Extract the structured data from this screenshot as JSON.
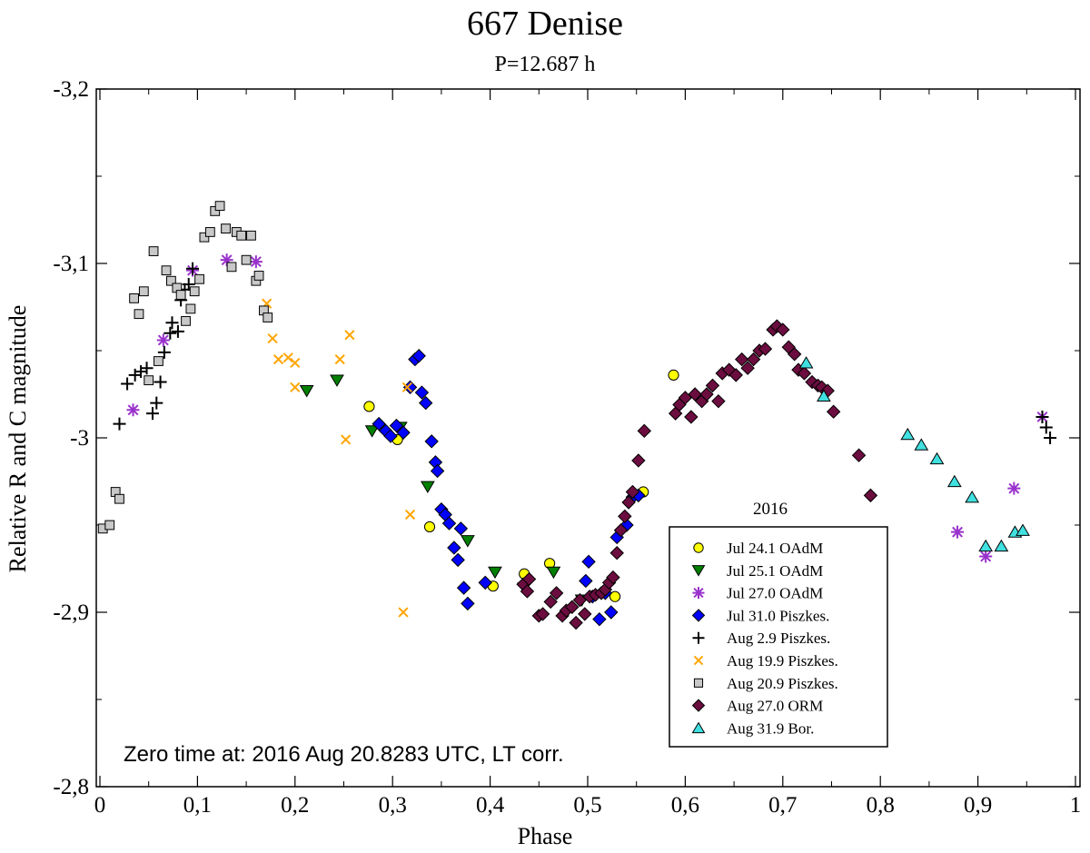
{
  "chart_data": {
    "type": "scatter",
    "title": "667 Denise",
    "subtitle": "P=12.687 h",
    "xlabel": "Phase",
    "ylabel": "Relative R and C magnitude",
    "xlim": [
      0,
      1
    ],
    "ylim": [
      -3.2,
      -2.8
    ],
    "y_inverted": true,
    "x_ticks": [
      0,
      0.1,
      0.2,
      0.3,
      0.4,
      0.5,
      0.6,
      0.7,
      0.8,
      0.9,
      1
    ],
    "x_tick_labels": [
      "0",
      "0,1",
      "0,2",
      "0,3",
      "0,4",
      "0,5",
      "0,6",
      "0,7",
      "0,8",
      "0,9",
      "1"
    ],
    "y_ticks": [
      -3.2,
      -3.1,
      -3.0,
      -2.9,
      -2.8
    ],
    "y_tick_labels": [
      "-3,2",
      "-3,1",
      "-3",
      "-2,9",
      "-2,8"
    ],
    "annotation": "Zero time at: 2016 Aug 20.8283 UTC, LT corr.",
    "legend_title": "2016",
    "legend_position": "bottom-right",
    "series": [
      {
        "name": "Jul 24.1 OAdM",
        "marker": "circle",
        "color": "#ffff00",
        "points": [
          [
            0.276,
            -3.018
          ],
          [
            0.305,
            -2.999
          ],
          [
            0.338,
            -2.949
          ],
          [
            0.403,
            -2.915
          ],
          [
            0.435,
            -2.922
          ],
          [
            0.461,
            -2.928
          ],
          [
            0.528,
            -2.909
          ],
          [
            0.557,
            -2.969
          ],
          [
            0.588,
            -3.036
          ]
        ]
      },
      {
        "name": "Jul 25.1 OAdM",
        "marker": "triangle-down",
        "color": "#008000",
        "points": [
          [
            0.212,
            -3.027
          ],
          [
            0.243,
            -3.033
          ],
          [
            0.279,
            -3.004
          ],
          [
            0.308,
            -3.006
          ],
          [
            0.336,
            -2.972
          ],
          [
            0.377,
            -2.941
          ],
          [
            0.405,
            -2.923
          ],
          [
            0.435,
            -2.914
          ],
          [
            0.465,
            -2.923
          ],
          [
            0.494,
            -2.907
          ]
        ]
      },
      {
        "name": "Jul 27.0 OAdM",
        "marker": "asterisk",
        "color": "#9932cc",
        "points": [
          [
            0.034,
            -3.016
          ],
          [
            0.065,
            -3.056
          ],
          [
            0.095,
            -3.096
          ],
          [
            0.13,
            -3.102
          ],
          [
            0.16,
            -3.101
          ],
          [
            0.879,
            -2.946
          ],
          [
            0.908,
            -2.932
          ],
          [
            0.937,
            -2.971
          ],
          [
            0.966,
            -3.012
          ]
        ]
      },
      {
        "name": "Jul 31.0 Piszkes.",
        "marker": "diamond",
        "color": "#0000ff",
        "points": [
          [
            0.286,
            -3.008
          ],
          [
            0.293,
            -3.004
          ],
          [
            0.298,
            -3.001
          ],
          [
            0.304,
            -3.007
          ],
          [
            0.311,
            -3.003
          ],
          [
            0.318,
            -3.029
          ],
          [
            0.323,
            -3.045
          ],
          [
            0.327,
            -3.047
          ],
          [
            0.33,
            -3.026
          ],
          [
            0.334,
            -3.02
          ],
          [
            0.34,
            -2.998
          ],
          [
            0.344,
            -2.986
          ],
          [
            0.346,
            -2.981
          ],
          [
            0.35,
            -2.959
          ],
          [
            0.354,
            -2.956
          ],
          [
            0.358,
            -2.951
          ],
          [
            0.363,
            -2.937
          ],
          [
            0.367,
            -2.93
          ],
          [
            0.37,
            -2.948
          ],
          [
            0.373,
            -2.914
          ],
          [
            0.377,
            -2.905
          ],
          [
            0.395,
            -2.917
          ],
          [
            0.498,
            -2.918
          ],
          [
            0.501,
            -2.929
          ],
          [
            0.505,
            -2.909
          ],
          [
            0.512,
            -2.896
          ],
          [
            0.518,
            -2.911
          ],
          [
            0.524,
            -2.9
          ],
          [
            0.53,
            -2.943
          ],
          [
            0.54,
            -2.95
          ],
          [
            0.546,
            -2.966
          ],
          [
            0.552,
            -2.967
          ]
        ]
      },
      {
        "name": "Aug 2.9 Piszkes.",
        "marker": "plus",
        "color": "#000000",
        "points": [
          [
            0.02,
            -3.008
          ],
          [
            0.028,
            -3.031
          ],
          [
            0.036,
            -3.036
          ],
          [
            0.042,
            -3.038
          ],
          [
            0.048,
            -3.04
          ],
          [
            0.054,
            -3.014
          ],
          [
            0.058,
            -3.02
          ],
          [
            0.062,
            -3.032
          ],
          [
            0.066,
            -3.049
          ],
          [
            0.072,
            -3.06
          ],
          [
            0.074,
            -3.066
          ],
          [
            0.08,
            -3.061
          ],
          [
            0.083,
            -3.079
          ],
          [
            0.087,
            -3.085
          ],
          [
            0.091,
            -3.088
          ],
          [
            0.095,
            -3.097
          ],
          [
            0.966,
            -3.012
          ],
          [
            0.97,
            -3.006
          ],
          [
            0.974,
            -3.0
          ]
        ]
      },
      {
        "name": "Aug 19.9 Piszkes.",
        "marker": "x",
        "color": "#ffa500",
        "points": [
          [
            0.171,
            -3.077
          ],
          [
            0.177,
            -3.057
          ],
          [
            0.183,
            -3.045
          ],
          [
            0.193,
            -3.046
          ],
          [
            0.2,
            -3.043
          ],
          [
            0.2,
            -3.029
          ],
          [
            0.246,
            -3.045
          ],
          [
            0.252,
            -2.999
          ],
          [
            0.256,
            -3.059
          ],
          [
            0.311,
            -2.9
          ],
          [
            0.315,
            -3.029
          ],
          [
            0.318,
            -2.956
          ]
        ]
      },
      {
        "name": "Aug 20.9 Piszkes.",
        "marker": "square",
        "color": "#c8c8c8",
        "points": [
          [
            0.003,
            -2.948
          ],
          [
            0.01,
            -2.95
          ],
          [
            0.016,
            -2.969
          ],
          [
            0.02,
            -2.965
          ],
          [
            0.035,
            -3.08
          ],
          [
            0.04,
            -3.071
          ],
          [
            0.045,
            -3.084
          ],
          [
            0.05,
            -3.033
          ],
          [
            0.055,
            -3.107
          ],
          [
            0.06,
            -3.044
          ],
          [
            0.068,
            -3.096
          ],
          [
            0.073,
            -3.09
          ],
          [
            0.079,
            -3.086
          ],
          [
            0.083,
            -3.082
          ],
          [
            0.088,
            -3.067
          ],
          [
            0.093,
            -3.074
          ],
          [
            0.097,
            -3.084
          ],
          [
            0.102,
            -3.091
          ],
          [
            0.107,
            -3.115
          ],
          [
            0.113,
            -3.118
          ],
          [
            0.118,
            -3.13
          ],
          [
            0.123,
            -3.133
          ],
          [
            0.129,
            -3.12
          ],
          [
            0.135,
            -3.098
          ],
          [
            0.14,
            -3.118
          ],
          [
            0.145,
            -3.116
          ],
          [
            0.15,
            -3.102
          ],
          [
            0.155,
            -3.116
          ],
          [
            0.16,
            -3.09
          ],
          [
            0.163,
            -3.093
          ],
          [
            0.168,
            -3.073
          ],
          [
            0.172,
            -3.069
          ]
        ]
      },
      {
        "name": "Aug 27.0 ORM",
        "marker": "diamond",
        "color": "#6b0d3f",
        "points": [
          [
            0.434,
            -2.916
          ],
          [
            0.438,
            -2.912
          ],
          [
            0.44,
            -2.919
          ],
          [
            0.45,
            -2.898
          ],
          [
            0.454,
            -2.899
          ],
          [
            0.462,
            -2.906
          ],
          [
            0.468,
            -2.911
          ],
          [
            0.474,
            -2.898
          ],
          [
            0.478,
            -2.901
          ],
          [
            0.484,
            -2.903
          ],
          [
            0.488,
            -2.894
          ],
          [
            0.492,
            -2.907
          ],
          [
            0.497,
            -2.899
          ],
          [
            0.502,
            -2.909
          ],
          [
            0.508,
            -2.91
          ],
          [
            0.514,
            -2.911
          ],
          [
            0.518,
            -2.913
          ],
          [
            0.522,
            -2.917
          ],
          [
            0.526,
            -2.92
          ],
          [
            0.53,
            -2.934
          ],
          [
            0.534,
            -2.947
          ],
          [
            0.538,
            -2.955
          ],
          [
            0.542,
            -2.963
          ],
          [
            0.546,
            -2.969
          ],
          [
            0.552,
            -2.987
          ],
          [
            0.558,
            -3.004
          ],
          [
            0.59,
            -3.014
          ],
          [
            0.594,
            -3.019
          ],
          [
            0.6,
            -3.023
          ],
          [
            0.606,
            -3.012
          ],
          [
            0.61,
            -3.025
          ],
          [
            0.617,
            -3.021
          ],
          [
            0.622,
            -3.025
          ],
          [
            0.628,
            -3.03
          ],
          [
            0.634,
            -3.021
          ],
          [
            0.638,
            -3.037
          ],
          [
            0.645,
            -3.039
          ],
          [
            0.652,
            -3.036
          ],
          [
            0.658,
            -3.045
          ],
          [
            0.664,
            -3.04
          ],
          [
            0.67,
            -3.045
          ],
          [
            0.676,
            -3.05
          ],
          [
            0.682,
            -3.051
          ],
          [
            0.69,
            -3.062
          ],
          [
            0.694,
            -3.064
          ],
          [
            0.7,
            -3.062
          ],
          [
            0.706,
            -3.052
          ],
          [
            0.712,
            -3.048
          ],
          [
            0.716,
            -3.039
          ],
          [
            0.722,
            -3.037
          ],
          [
            0.73,
            -3.032
          ],
          [
            0.736,
            -3.03
          ],
          [
            0.74,
            -3.029
          ],
          [
            0.746,
            -3.027
          ],
          [
            0.752,
            -3.015
          ],
          [
            0.778,
            -2.99
          ],
          [
            0.79,
            -2.967
          ]
        ]
      },
      {
        "name": "Aug 31.9 Bor.",
        "marker": "triangle-up",
        "color": "#40e0e0",
        "points": [
          [
            0.724,
            -3.043
          ],
          [
            0.742,
            -3.024
          ],
          [
            0.828,
            -3.002
          ],
          [
            0.842,
            -2.996
          ],
          [
            0.858,
            -2.988
          ],
          [
            0.876,
            -2.975
          ],
          [
            0.894,
            -2.966
          ],
          [
            0.908,
            -2.938
          ],
          [
            0.924,
            -2.938
          ],
          [
            0.938,
            -2.946
          ],
          [
            0.946,
            -2.947
          ]
        ]
      }
    ]
  }
}
